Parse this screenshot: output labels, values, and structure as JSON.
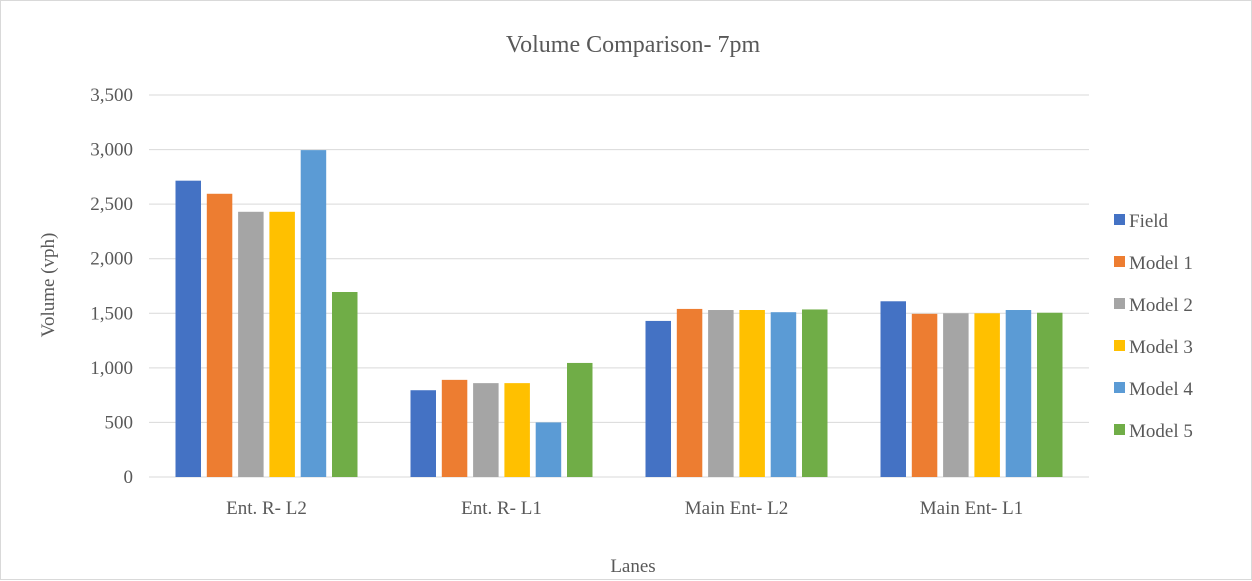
{
  "chart_data": {
    "type": "bar",
    "title": "Volume Comparison- 7pm",
    "xlabel": "Lanes",
    "ylabel": "Volume (vph)",
    "categories": [
      "Ent. R- L2",
      "Ent. R- L1",
      "Main Ent- L2",
      "Main Ent- L1"
    ],
    "ylim": [
      0,
      3500
    ],
    "yticks": [
      0,
      500,
      1000,
      1500,
      2000,
      2500,
      3000,
      3500
    ],
    "ytick_labels": [
      "0",
      "500",
      "1,000",
      "1,500",
      "2,000",
      "2,500",
      "3,000",
      "3,500"
    ],
    "grid": true,
    "legend_position": "right",
    "series": [
      {
        "name": "Field",
        "color": "#4472C4",
        "values": [
          2715,
          795,
          1430,
          1610
        ]
      },
      {
        "name": "Model 1",
        "color": "#ED7D31",
        "values": [
          2595,
          890,
          1540,
          1495
        ]
      },
      {
        "name": "Model 2",
        "color": "#A5A5A5",
        "values": [
          2430,
          860,
          1530,
          1500
        ]
      },
      {
        "name": "Model 3",
        "color": "#FFC000",
        "values": [
          2430,
          860,
          1530,
          1500
        ]
      },
      {
        "name": "Model 4",
        "color": "#5B9BD5",
        "values": [
          2995,
          500,
          1510,
          1530
        ]
      },
      {
        "name": "Model 5",
        "color": "#70AD47",
        "values": [
          1695,
          1045,
          1535,
          1505
        ]
      }
    ]
  }
}
